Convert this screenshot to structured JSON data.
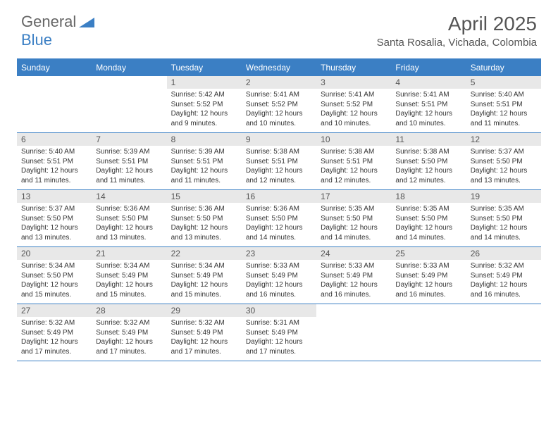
{
  "logo": {
    "text1": "General",
    "text2": "Blue"
  },
  "title": "April 2025",
  "location": "Santa Rosalia, Vichada, Colombia",
  "colors": {
    "header_bg": "#3b7fc4",
    "header_text": "#ffffff",
    "daynum_bg": "#e8e8e8",
    "text": "#333333",
    "title_text": "#555555",
    "border": "#3b7fc4",
    "background": "#ffffff"
  },
  "typography": {
    "title_fontsize": 28,
    "location_fontsize": 15,
    "dayhead_fontsize": 12,
    "daynum_fontsize": 12,
    "info_fontsize": 10
  },
  "dayNames": [
    "Sunday",
    "Monday",
    "Tuesday",
    "Wednesday",
    "Thursday",
    "Friday",
    "Saturday"
  ],
  "weeks": [
    [
      {
        "n": "",
        "sr": "",
        "ss": "",
        "dl": ""
      },
      {
        "n": "",
        "sr": "",
        "ss": "",
        "dl": ""
      },
      {
        "n": "1",
        "sr": "5:42 AM",
        "ss": "5:52 PM",
        "dl": "12 hours and 9 minutes."
      },
      {
        "n": "2",
        "sr": "5:41 AM",
        "ss": "5:52 PM",
        "dl": "12 hours and 10 minutes."
      },
      {
        "n": "3",
        "sr": "5:41 AM",
        "ss": "5:52 PM",
        "dl": "12 hours and 10 minutes."
      },
      {
        "n": "4",
        "sr": "5:41 AM",
        "ss": "5:51 PM",
        "dl": "12 hours and 10 minutes."
      },
      {
        "n": "5",
        "sr": "5:40 AM",
        "ss": "5:51 PM",
        "dl": "12 hours and 11 minutes."
      }
    ],
    [
      {
        "n": "6",
        "sr": "5:40 AM",
        "ss": "5:51 PM",
        "dl": "12 hours and 11 minutes."
      },
      {
        "n": "7",
        "sr": "5:39 AM",
        "ss": "5:51 PM",
        "dl": "12 hours and 11 minutes."
      },
      {
        "n": "8",
        "sr": "5:39 AM",
        "ss": "5:51 PM",
        "dl": "12 hours and 11 minutes."
      },
      {
        "n": "9",
        "sr": "5:38 AM",
        "ss": "5:51 PM",
        "dl": "12 hours and 12 minutes."
      },
      {
        "n": "10",
        "sr": "5:38 AM",
        "ss": "5:51 PM",
        "dl": "12 hours and 12 minutes."
      },
      {
        "n": "11",
        "sr": "5:38 AM",
        "ss": "5:50 PM",
        "dl": "12 hours and 12 minutes."
      },
      {
        "n": "12",
        "sr": "5:37 AM",
        "ss": "5:50 PM",
        "dl": "12 hours and 13 minutes."
      }
    ],
    [
      {
        "n": "13",
        "sr": "5:37 AM",
        "ss": "5:50 PM",
        "dl": "12 hours and 13 minutes."
      },
      {
        "n": "14",
        "sr": "5:36 AM",
        "ss": "5:50 PM",
        "dl": "12 hours and 13 minutes."
      },
      {
        "n": "15",
        "sr": "5:36 AM",
        "ss": "5:50 PM",
        "dl": "12 hours and 13 minutes."
      },
      {
        "n": "16",
        "sr": "5:36 AM",
        "ss": "5:50 PM",
        "dl": "12 hours and 14 minutes."
      },
      {
        "n": "17",
        "sr": "5:35 AM",
        "ss": "5:50 PM",
        "dl": "12 hours and 14 minutes."
      },
      {
        "n": "18",
        "sr": "5:35 AM",
        "ss": "5:50 PM",
        "dl": "12 hours and 14 minutes."
      },
      {
        "n": "19",
        "sr": "5:35 AM",
        "ss": "5:50 PM",
        "dl": "12 hours and 14 minutes."
      }
    ],
    [
      {
        "n": "20",
        "sr": "5:34 AM",
        "ss": "5:50 PM",
        "dl": "12 hours and 15 minutes."
      },
      {
        "n": "21",
        "sr": "5:34 AM",
        "ss": "5:49 PM",
        "dl": "12 hours and 15 minutes."
      },
      {
        "n": "22",
        "sr": "5:34 AM",
        "ss": "5:49 PM",
        "dl": "12 hours and 15 minutes."
      },
      {
        "n": "23",
        "sr": "5:33 AM",
        "ss": "5:49 PM",
        "dl": "12 hours and 16 minutes."
      },
      {
        "n": "24",
        "sr": "5:33 AM",
        "ss": "5:49 PM",
        "dl": "12 hours and 16 minutes."
      },
      {
        "n": "25",
        "sr": "5:33 AM",
        "ss": "5:49 PM",
        "dl": "12 hours and 16 minutes."
      },
      {
        "n": "26",
        "sr": "5:32 AM",
        "ss": "5:49 PM",
        "dl": "12 hours and 16 minutes."
      }
    ],
    [
      {
        "n": "27",
        "sr": "5:32 AM",
        "ss": "5:49 PM",
        "dl": "12 hours and 17 minutes."
      },
      {
        "n": "28",
        "sr": "5:32 AM",
        "ss": "5:49 PM",
        "dl": "12 hours and 17 minutes."
      },
      {
        "n": "29",
        "sr": "5:32 AM",
        "ss": "5:49 PM",
        "dl": "12 hours and 17 minutes."
      },
      {
        "n": "30",
        "sr": "5:31 AM",
        "ss": "5:49 PM",
        "dl": "12 hours and 17 minutes."
      },
      {
        "n": "",
        "sr": "",
        "ss": "",
        "dl": ""
      },
      {
        "n": "",
        "sr": "",
        "ss": "",
        "dl": ""
      },
      {
        "n": "",
        "sr": "",
        "ss": "",
        "dl": ""
      }
    ]
  ],
  "labels": {
    "sunrise": "Sunrise:",
    "sunset": "Sunset:",
    "daylight": "Daylight:"
  }
}
